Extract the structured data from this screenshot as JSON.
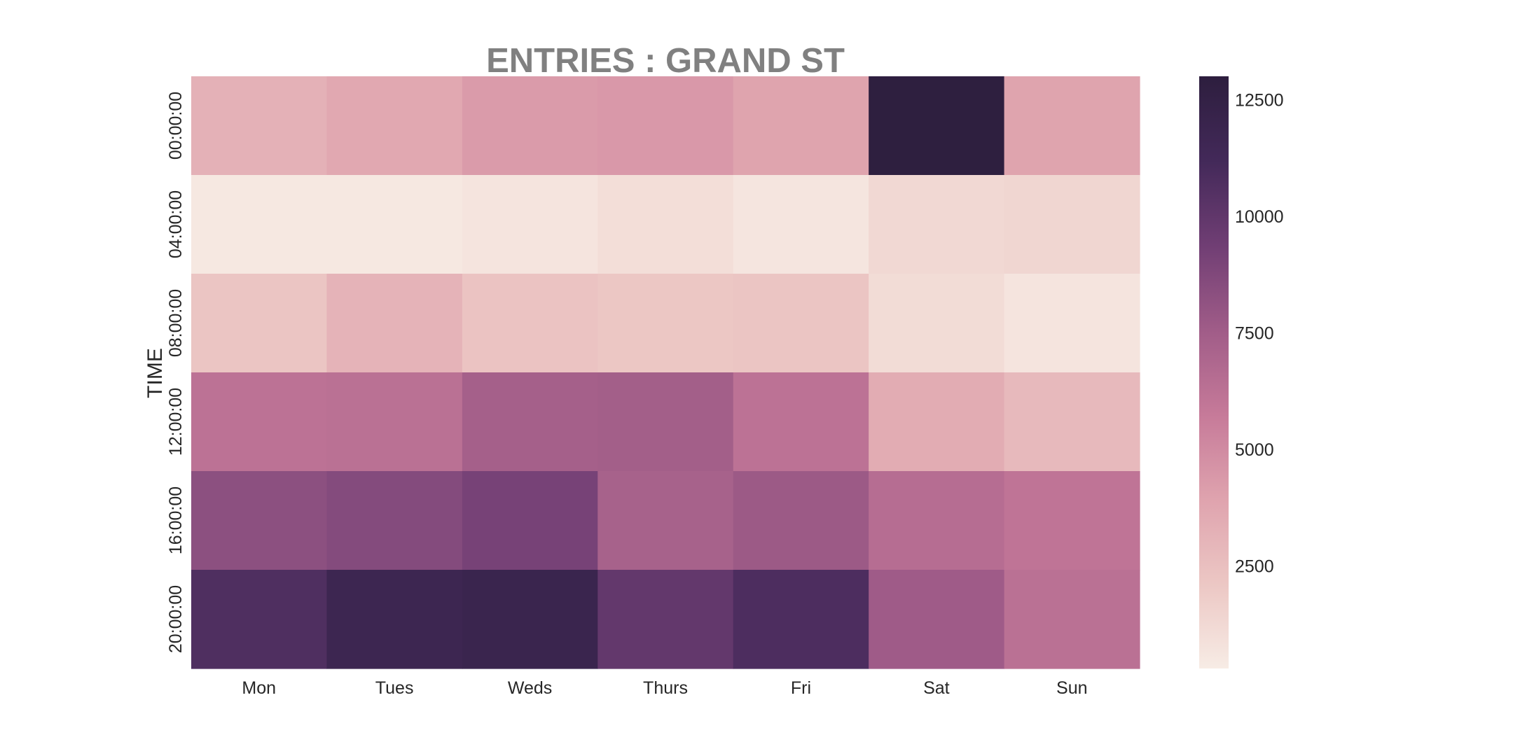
{
  "chart_data": {
    "type": "heatmap",
    "title": "ENTRIES : GRAND ST",
    "ylabel": "TIME",
    "xlabel": "",
    "x_categories": [
      "Mon",
      "Tues",
      "Weds",
      "Thurs",
      "Fri",
      "Sat",
      "Sun"
    ],
    "y_categories": [
      "00:00:00",
      "04:00:00",
      "08:00:00",
      "12:00:00",
      "16:00:00",
      "20:00:00"
    ],
    "values": [
      [
        3200,
        3700,
        4300,
        4400,
        3900,
        12900,
        3900
      ],
      [
        500,
        500,
        700,
        1000,
        650,
        1300,
        1400
      ],
      [
        2200,
        3100,
        2300,
        2100,
        2200,
        1100,
        700
      ],
      [
        6200,
        6300,
        7300,
        7400,
        6200,
        3500,
        2800
      ],
      [
        8300,
        8600,
        9100,
        7200,
        7700,
        6500,
        6100
      ],
      [
        10700,
        11700,
        11900,
        9900,
        10800,
        7600,
        6300
      ]
    ],
    "colorbar": {
      "min": 300,
      "max": 13000,
      "ticks": [
        2500,
        5000,
        7500,
        10000,
        12500
      ],
      "tick_labels": [
        "2500",
        "5000",
        "7500",
        "10000",
        "12500"
      ],
      "colormap": [
        "#f7ece5",
        "#ecc7c4",
        "#dfa3ae",
        "#c67a99",
        "#a05c88",
        "#703e74",
        "#432959",
        "#2d1e3e"
      ]
    },
    "grid": false,
    "legend": "none"
  }
}
